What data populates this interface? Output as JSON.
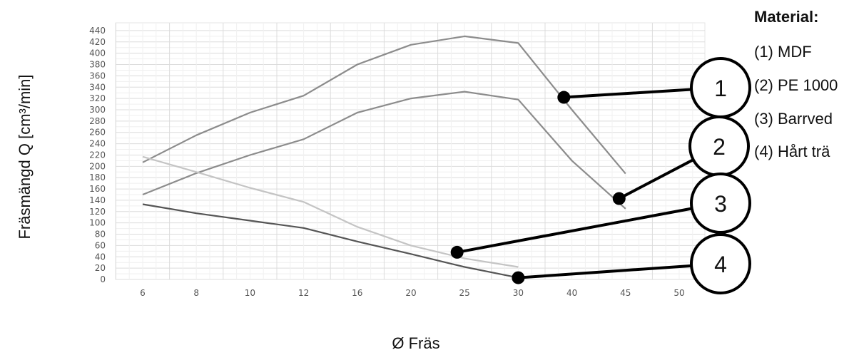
{
  "chart_data": {
    "type": "line",
    "title": "",
    "xlabel": "Ø Fräs",
    "ylabel": "Fräsmängd Q [cm³/min]",
    "categories": [
      "6",
      "8",
      "10",
      "12",
      "16",
      "20",
      "25",
      "30",
      "40",
      "45",
      "50"
    ],
    "yticks": [
      0,
      20,
      40,
      60,
      80,
      100,
      120,
      140,
      160,
      180,
      200,
      220,
      240,
      260,
      280,
      300,
      320,
      340,
      360,
      380,
      400,
      420,
      440
    ],
    "ylim": [
      0,
      450
    ],
    "grid": true,
    "series": [
      {
        "callout": "1",
        "color": "#8c8c8c",
        "values": [
          207,
          255,
          295,
          325,
          380,
          415,
          430,
          418,
          300,
          187,
          null
        ]
      },
      {
        "callout": "2",
        "color": "#8c8c8c",
        "values": [
          150,
          188,
          220,
          248,
          295,
          320,
          332,
          318,
          210,
          125,
          null
        ]
      },
      {
        "callout": "3",
        "color": "#c4c4c4",
        "values": [
          217,
          190,
          162,
          137,
          93,
          60,
          37,
          22,
          null,
          null,
          null
        ]
      },
      {
        "callout": "4",
        "color": "#555555",
        "values": [
          133,
          117,
          104,
          91,
          67,
          45,
          22,
          3,
          null,
          null,
          null
        ]
      }
    ],
    "callouts": [
      {
        "label": "1",
        "x": 38.5,
        "y": 322
      },
      {
        "label": "2",
        "x": 44.4,
        "y": 143
      },
      {
        "label": "3",
        "x": 24.3,
        "y": 48
      },
      {
        "label": "4",
        "x": 30,
        "y": 3
      }
    ],
    "legend": {
      "position": "right",
      "title": "Material:",
      "items": [
        "(1) MDF",
        "(2) PE 1000",
        "(3) Barrved",
        "(4) Hårt trä"
      ]
    }
  }
}
